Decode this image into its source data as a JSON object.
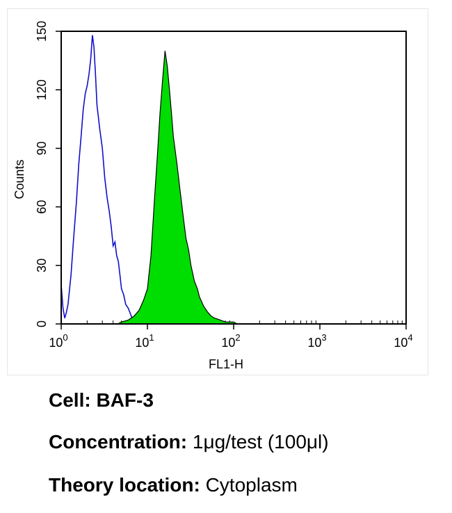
{
  "chart_data": {
    "type": "area",
    "xscale": "log",
    "xlim": [
      1,
      10000
    ],
    "ylim": [
      0,
      150
    ],
    "xlabel": "FL1-H",
    "ylabel": "Counts",
    "x_ticks": [
      {
        "value": 1,
        "base": "10",
        "exp": "0"
      },
      {
        "value": 10,
        "base": "10",
        "exp": "1"
      },
      {
        "value": 100,
        "base": "10",
        "exp": "2"
      },
      {
        "value": 1000,
        "base": "10",
        "exp": "3"
      },
      {
        "value": 10000,
        "base": "10",
        "exp": "4"
      }
    ],
    "y_ticks": [
      "0",
      "30",
      "60",
      "90",
      "120",
      "150"
    ],
    "series": [
      {
        "style": "outline",
        "color": "#1010c8",
        "x": [
          1.0,
          1.05,
          1.1,
          1.15,
          1.2,
          1.3,
          1.4,
          1.5,
          1.6,
          1.7,
          1.8,
          1.9,
          2.0,
          2.1,
          2.2,
          2.3,
          2.4,
          2.5,
          2.6,
          2.7,
          2.8,
          3.0,
          3.2,
          3.4,
          3.6,
          3.8,
          4.0,
          4.2,
          4.4,
          4.6,
          4.8,
          5.0,
          5.3,
          5.6,
          6.0,
          6.5,
          7.0
        ],
        "y": [
          20,
          8,
          3,
          6,
          10,
          25,
          45,
          62,
          82,
          96,
          110,
          118,
          122,
          128,
          136,
          148,
          142,
          128,
          112,
          106,
          100,
          90,
          75,
          65,
          58,
          50,
          40,
          42,
          35,
          32,
          25,
          18,
          15,
          10,
          8,
          4,
          1
        ]
      },
      {
        "style": "filled",
        "color": "#00dd00",
        "x": [
          4.5,
          5,
          6,
          7,
          8,
          9,
          10,
          11,
          12,
          13,
          14,
          15,
          16,
          17,
          18,
          19,
          20,
          22,
          24,
          26,
          28,
          30,
          32,
          35,
          38,
          40,
          45,
          50,
          55,
          60,
          70,
          80,
          90,
          100,
          110
        ],
        "y": [
          0,
          1,
          2,
          4,
          7,
          12,
          18,
          35,
          62,
          85,
          108,
          125,
          140,
          132,
          120,
          108,
          96,
          82,
          68,
          55,
          44,
          38,
          30,
          22,
          18,
          14,
          9,
          6,
          4,
          3,
          2,
          1,
          1,
          1,
          0
        ]
      }
    ]
  },
  "captions": {
    "cell_label": "Cell:",
    "cell_value": "BAF-3",
    "concentration_label": "Concentration:",
    "concentration_value": "1μg/test (100μl)",
    "location_label": "Theory location:",
    "location_value": "Cytoplasm"
  }
}
